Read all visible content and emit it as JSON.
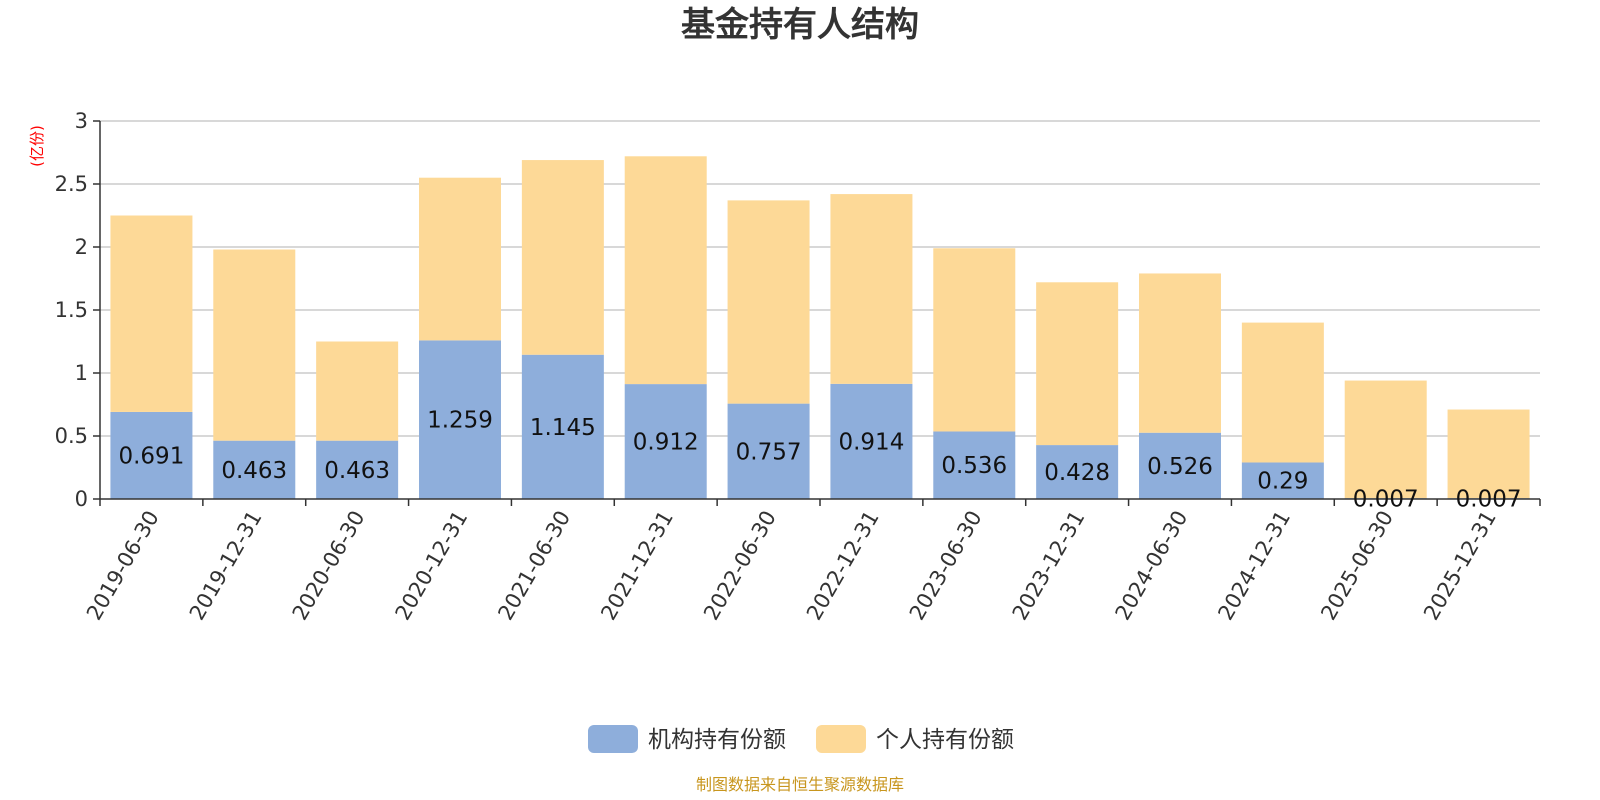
{
  "colors": {
    "institutional": "#8eaedb",
    "individual": "#fdd997",
    "grid": "#cccccc",
    "axis": "#333333",
    "title": "#333333",
    "unit": "#ff0000",
    "source": "#c8961e"
  },
  "chart_data": {
    "type": "bar",
    "stacked": true,
    "title": "基金持有人结构",
    "ylabel": "(亿份)",
    "xlabel": "",
    "ylim": [
      0,
      3
    ],
    "yticks": [
      "0",
      "0.5",
      "1",
      "1.5",
      "2",
      "2.5",
      "3"
    ],
    "grid": true,
    "legend_position": "bottom",
    "categories": [
      "2019-06-30",
      "2019-12-31",
      "2020-06-30",
      "2020-12-31",
      "2021-06-30",
      "2021-12-31",
      "2022-06-30",
      "2022-12-31",
      "2023-06-30",
      "2023-12-31",
      "2024-06-30",
      "2024-12-31",
      "2025-06-30",
      "2025-12-31"
    ],
    "series": [
      {
        "name": "机构持有份额",
        "color": "#8eaedb",
        "values": [
          0.691,
          0.463,
          0.463,
          1.259,
          1.145,
          0.912,
          0.757,
          0.914,
          0.536,
          0.428,
          0.526,
          0.29,
          0.007,
          0.007
        ],
        "labels": [
          "0.691",
          "0.463",
          "0.463",
          "1.259",
          "1.145",
          "0.912",
          "0.757",
          "0.914",
          "0.536",
          "0.428",
          "0.526",
          "0.29",
          "0.007",
          "0.007"
        ]
      },
      {
        "name": "个人持有份额",
        "color": "#fdd997",
        "values": [
          1.559,
          1.517,
          0.787,
          1.291,
          1.545,
          1.808,
          1.613,
          1.506,
          1.454,
          1.292,
          1.264,
          1.11,
          0.933,
          0.703
        ]
      }
    ]
  },
  "footer": {
    "source": "制图数据来自恒生聚源数据库"
  }
}
